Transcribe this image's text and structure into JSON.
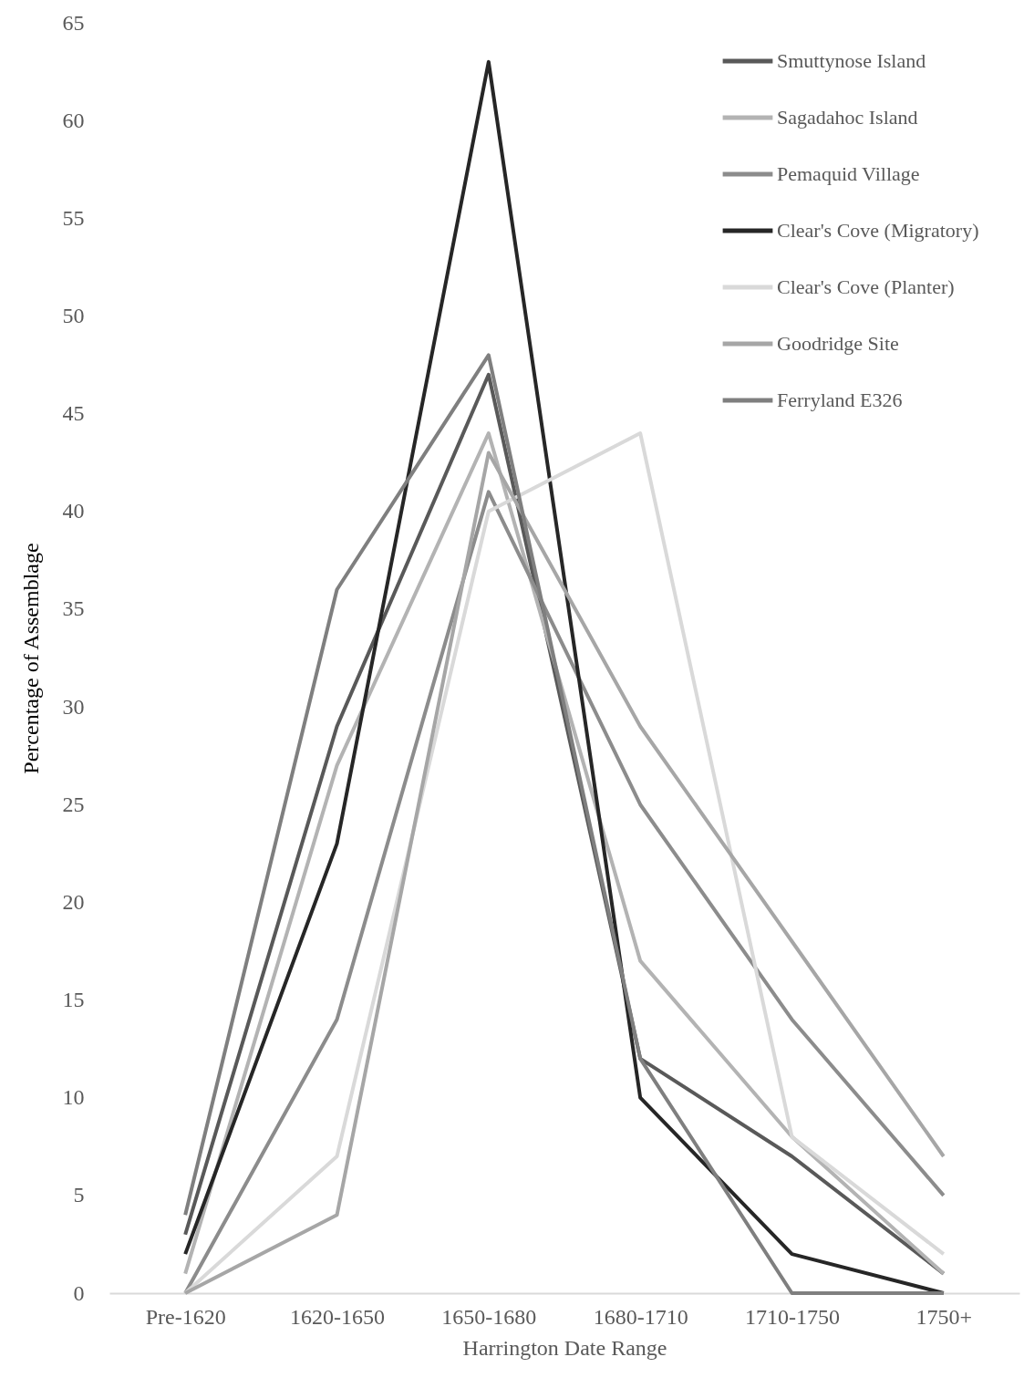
{
  "chart_data": {
    "type": "line",
    "xlabel": "Harrington Date Range",
    "ylabel": "Percentage of Assemblage",
    "categories": [
      "Pre-1620",
      "1620-1650",
      "1650-1680",
      "1680-1710",
      "1710-1750",
      "1750+"
    ],
    "ylim": [
      0,
      65
    ],
    "yticks": [
      0,
      5,
      10,
      15,
      20,
      25,
      30,
      35,
      40,
      45,
      50,
      55,
      60,
      65
    ],
    "grid": false,
    "legend": "top right",
    "series": [
      {
        "name": "Smuttynose Island",
        "color": "#595959",
        "values": [
          3,
          29,
          47,
          12,
          7,
          1
        ]
      },
      {
        "name": "Sagadahoc Island",
        "color": "#b3b3b3",
        "values": [
          1,
          27,
          44,
          17,
          8,
          1
        ]
      },
      {
        "name": "Pemaquid Village",
        "color": "#8c8c8c",
        "values": [
          0,
          14,
          41,
          25,
          14,
          5
        ]
      },
      {
        "name": "Clear's Cove (Migratory)",
        "color": "#262626",
        "values": [
          2,
          23,
          63,
          10,
          2,
          0
        ]
      },
      {
        "name": "Clear's Cove (Planter)",
        "color": "#d9d9d9",
        "values": [
          0,
          7,
          40,
          44,
          8,
          2
        ]
      },
      {
        "name": "Goodridge Site",
        "color": "#a6a6a6",
        "values": [
          0,
          4,
          43,
          29,
          18,
          7
        ]
      },
      {
        "name": "Ferryland E326",
        "color": "#7f7f7f",
        "values": [
          4,
          36,
          48,
          12,
          0,
          0
        ]
      }
    ]
  }
}
